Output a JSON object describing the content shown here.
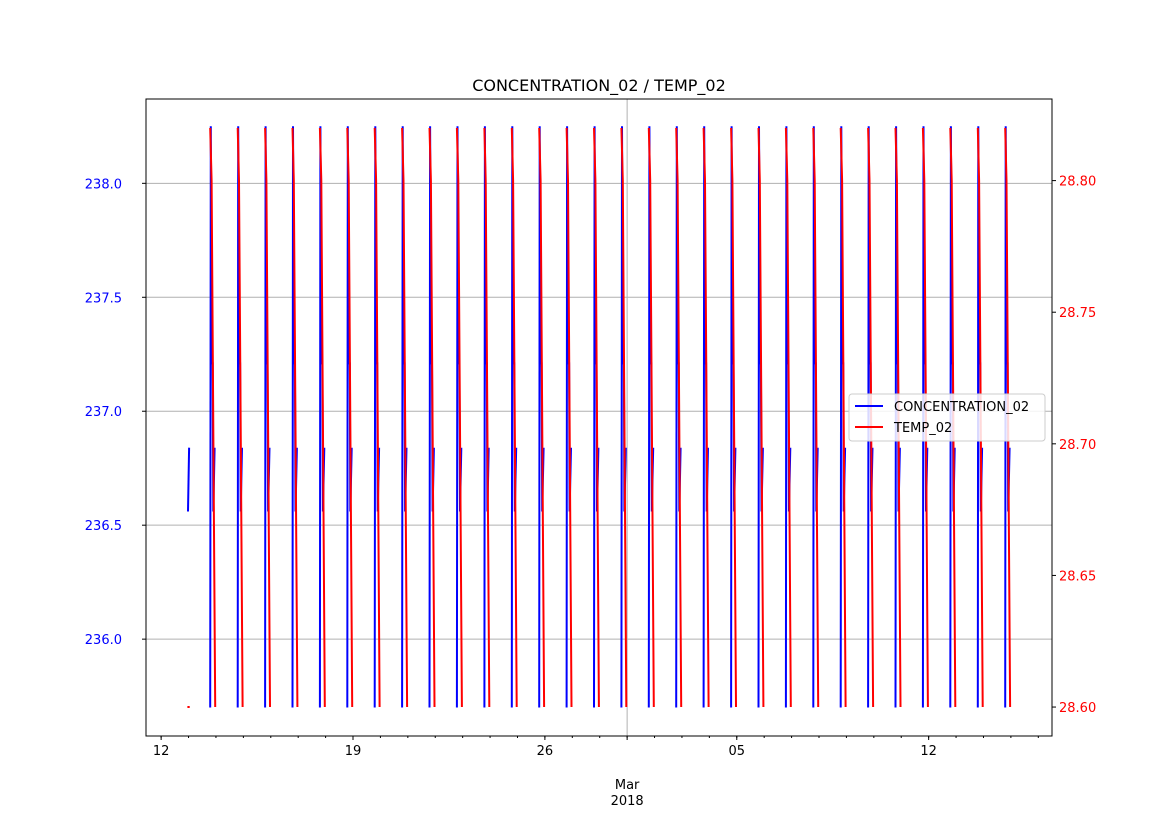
{
  "chart_data": {
    "type": "line",
    "title": "CONCENTRATION_02 / TEMP_02",
    "xlabel": "",
    "x_range": [
      "2018-02-11T10:45",
      "2018-03-16T12:00"
    ],
    "x_tick_labels": [
      {
        "date": "2018-02-12",
        "label": "12"
      },
      {
        "date": "2018-02-19",
        "label": "19"
      },
      {
        "date": "2018-02-26",
        "label": "26"
      },
      {
        "date": "2018-03-01",
        "label": "Mar",
        "sublabel": "2018"
      },
      {
        "date": "2018-03-05",
        "label": "05"
      },
      {
        "date": "2018-03-12",
        "label": "12"
      }
    ],
    "x_gridlines": [
      "2018-03-01"
    ],
    "left_axis": {
      "ylim": [
        235.575,
        238.37
      ],
      "ticks": [
        "236.0",
        "236.5",
        "237.0",
        "237.5",
        "238.0"
      ],
      "color": "#0000ff",
      "grid": true
    },
    "right_axis": {
      "ylim": [
        28.589,
        28.831
      ],
      "ticks": [
        "28.60",
        "28.65",
        "28.70",
        "28.75",
        "28.80"
      ],
      "color": "#ff0000"
    },
    "legend": {
      "placement": "center-right",
      "entries": [
        "CONCENTRATION_02",
        "TEMP_02"
      ]
    },
    "series": [
      {
        "name": "CONCENTRATION_02",
        "axis": "left",
        "color": "#0000ff",
        "initial_segment": [
          [
            "2018-02-12T23:30",
            236.56
          ],
          [
            "2018-02-13T00:30",
            236.84
          ]
        ],
        "cycle_pattern_days": [
          [
            0.0,
            235.7
          ],
          [
            0.02,
            238.25
          ],
          [
            0.06,
            237.21
          ],
          [
            0.09,
            237.21
          ],
          [
            0.11,
            236.56
          ],
          [
            0.16,
            236.84
          ]
        ]
      },
      {
        "name": "TEMP_02",
        "axis": "right",
        "color": "#ff0000",
        "initial_segment": [
          [
            "2018-02-12T23:00",
            28.6
          ],
          [
            "2018-02-13T01:00",
            28.6
          ]
        ],
        "cycle_pattern_days": [
          [
            0.0,
            28.82
          ],
          [
            0.05,
            28.8
          ],
          [
            0.18,
            28.6
          ]
        ]
      }
    ],
    "cycle_first_start": "2018-02-13T19:00",
    "cycle_count": 30,
    "cycle_period_days": 1
  }
}
